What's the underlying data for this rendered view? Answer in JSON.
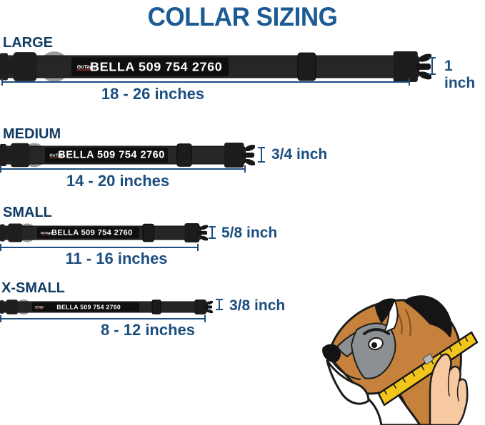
{
  "title": "COLLAR SIZING",
  "sizes": [
    {
      "label": "LARGE",
      "range": "18 - 26 inches",
      "width_label": "1 inch",
      "collar_text": "BELLA 509 754 2760",
      "brand": "GoTags"
    },
    {
      "label": "MEDIUM",
      "range": "14 - 20 inches",
      "width_label": "3/4 inch",
      "collar_text": "BELLA 509 754 2760",
      "brand": "GoTags"
    },
    {
      "label": "SMALL",
      "range": "11 - 16 inches",
      "width_label": "5/8 inch",
      "collar_text": "BELLA 509 754 2760",
      "brand": "GoTags"
    },
    {
      "label": "X-SMALL",
      "range": "8 - 12 inches",
      "width_label": "3/8 inch",
      "collar_text": "BELLA 509 754 2760",
      "brand": "GoTags"
    }
  ],
  "colors": {
    "title_blue": "#1D5B94",
    "label_navy": "#103C64",
    "measure_blue": "#1C4F80",
    "collar_black": "#262626",
    "plate_black": "#0F0F0F",
    "ring_gray": "#9B9B9B",
    "tape_yellow": "#F2C51D",
    "dog_tan": "#C6823C",
    "mask_gray": "#8D9092",
    "hand_skin": "#F6C9A1"
  }
}
